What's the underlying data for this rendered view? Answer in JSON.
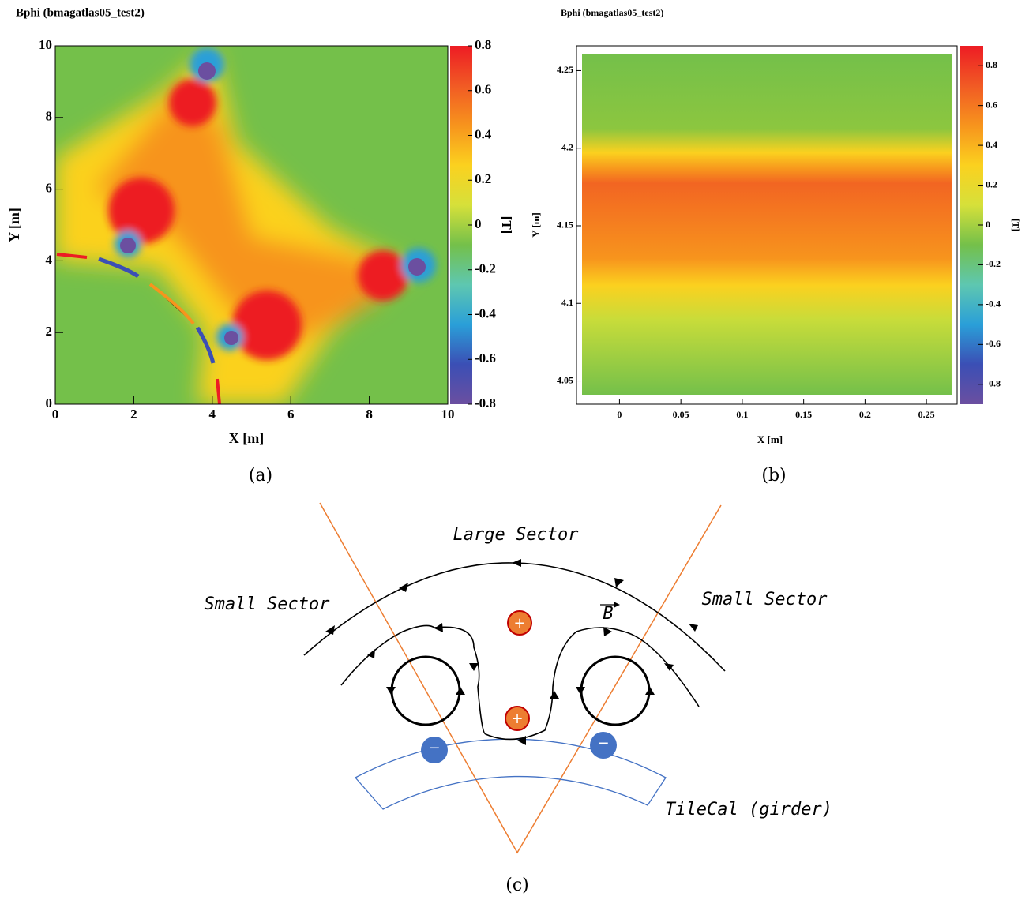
{
  "chart_data": [
    {
      "type": "heatmap",
      "title": "Bphi (bmagatlas05_test2)",
      "xlabel": "X [m]",
      "ylabel": "Y [m]",
      "xlim": [
        0,
        10
      ],
      "xticks": [
        0,
        2,
        4,
        6,
        8,
        10
      ],
      "ylim": [
        0,
        10
      ],
      "yticks": [
        0,
        2,
        4,
        6,
        8,
        10
      ],
      "zlabel": "[T]",
      "zlim": [
        -0.8,
        0.8
      ],
      "zticks": [
        -0.8,
        -0.6,
        -0.4,
        -0.2,
        0,
        0.2,
        0.4,
        0.6,
        0.8
      ],
      "colormap": [
        "#6b4fa0",
        "#3b4fb5",
        "#2a9fd8",
        "#5ec7b0",
        "#74c04a",
        "#d6e03a",
        "#fbd11f",
        "#f7941d",
        "#f15a24",
        "#ed1c24"
      ]
    },
    {
      "type": "heatmap",
      "title": "Bphi (bmagatlas05_test2)",
      "xlabel": "X [m]",
      "ylabel": "Y [m]",
      "xlim": [
        -0.035,
        0.275
      ],
      "xticks": [
        0,
        0.05,
        0.1,
        0.15,
        0.2,
        0.25
      ],
      "ylim": [
        4.035,
        4.266
      ],
      "yticks": [
        4.05,
        4.1,
        4.15,
        4.2,
        4.25
      ],
      "zlabel": "[T]",
      "zlim": [
        -0.9,
        0.9
      ],
      "zticks": [
        -0.8,
        -0.6,
        -0.4,
        -0.2,
        0,
        0.2,
        0.4,
        0.6,
        0.8
      ],
      "colormap": [
        "#6b4fa0",
        "#3b4fb5",
        "#2a9fd8",
        "#5ec7b0",
        "#74c04a",
        "#d6e03a",
        "#fbd11f",
        "#f7941d",
        "#f15a24",
        "#ed1c24"
      ]
    }
  ],
  "captions": [
    "(a)",
    "(b)",
    "(c)"
  ],
  "diagram": {
    "large_sector": "Large Sector",
    "small_sector_left": "Small Sector",
    "small_sector_right": "Small Sector",
    "field": "B",
    "tilecal": "TileCal (girder)",
    "plus": [
      "+",
      "+"
    ],
    "minus": [
      "−",
      "−"
    ]
  }
}
